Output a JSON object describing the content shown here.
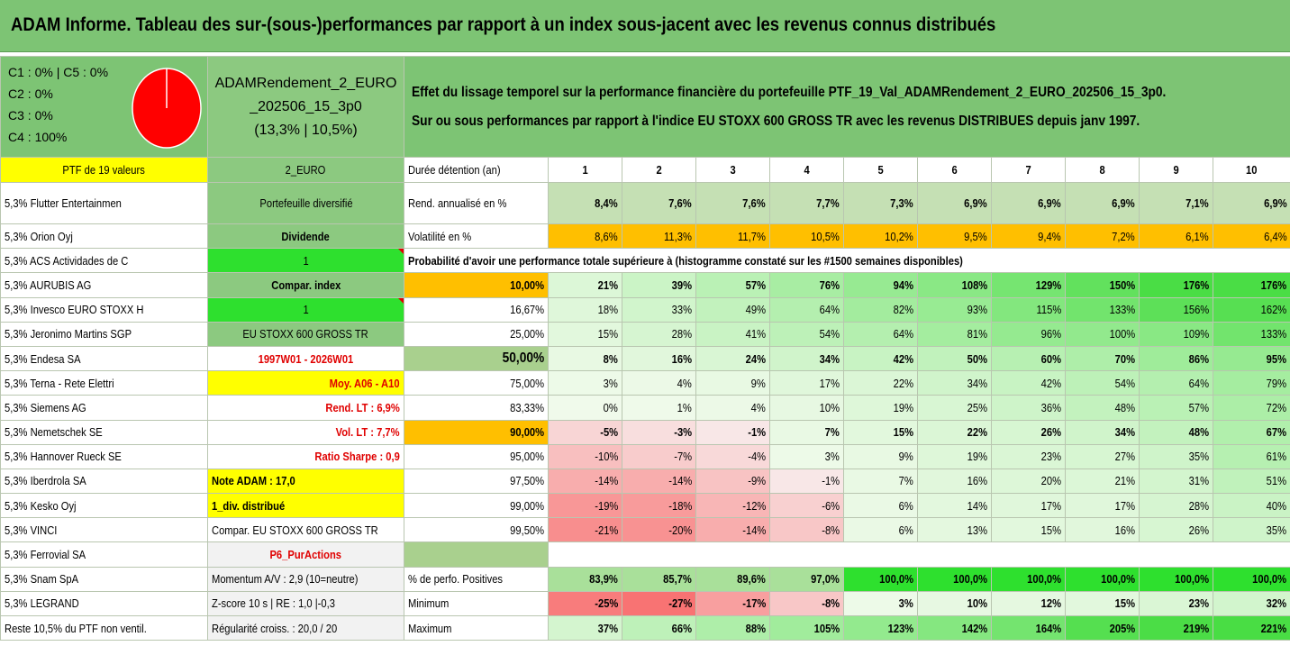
{
  "title": "ADAM Informe. Tableau des sur-(sous-)performances par rapport à un index sous-jacent avec les revenus connus distribués",
  "classes": [
    "C1 : 0% | C5 : 0%",
    "C2 : 0%",
    "C3 : 0%",
    "C4 : 100%"
  ],
  "pie": {
    "c4_fraction": 1.0,
    "color": "#ff0000"
  },
  "portfolio_name_line1": "ADAMRendement_2_EURO",
  "portfolio_name_line2": "_202506_15_3p0",
  "portfolio_name_line3": "(13,3% | 10,5%)",
  "description_line1": "Effet du lissage temporel sur la performance financière du portefeuille PTF_19_Val_ADAMRendement_2_EURO_202506_15_3p0.",
  "description_line2": "Sur ou sous performances par rapport à l'indice EU STOXX 600 GROSS TR avec les revenus DISTRIBUES depuis janv 1997.",
  "ptf_header": "PTF de 19 valeurs",
  "ptf_code": "2_EURO",
  "duration_label": "Durée détention (an)",
  "durations": [
    "1",
    "2",
    "3",
    "4",
    "5",
    "6",
    "7",
    "8",
    "9",
    "10"
  ],
  "holdings": [
    "5,3% Flutter Entertainmen",
    "5,3% Orion Oyj",
    "5,3% ACS Actividades de C",
    "5,3% AURUBIS AG",
    "5,3% Invesco EURO STOXX H",
    "5,3% Jeronimo Martins SGP",
    "5,3% Endesa SA",
    "5,3% Terna - Rete Elettri",
    "5,3% Siemens AG",
    "5,3% Nemetschek SE",
    "5,3% Hannover Rueck SE",
    "5,3% Iberdrola SA",
    "5,3% Kesko Oyj",
    "5,3% VINCI",
    "5,3% Ferrovial SA",
    "5,3% Snam SpA",
    "5,3% LEGRAND",
    "Reste 10,5% du PTF non ventil."
  ],
  "side_info": [
    "Portefeuille diversifié",
    "Dividende",
    "1",
    "Compar. index",
    "1",
    "EU STOXX 600 GROSS TR",
    "1997W01 - 2026W01",
    "Moy. A06 - A10",
    "Rend. LT : 6,9%",
    "Vol. LT : 7,7%",
    "Ratio Sharpe : 0,9",
    "Note ADAM : 17,0",
    "1_div. distribué",
    "Compar. EU STOXX 600 GROSS TR",
    "P6_PurActions",
    "Momentum A/V : 2,9 (10=neutre)",
    "Z-score 10 s | RE : 1,0 |-0,3",
    "Régularité croiss. : 20,0 / 20"
  ],
  "rend_label": "Rend. annualisé en %",
  "rend_values": [
    "8,4%",
    "7,6%",
    "7,6%",
    "7,7%",
    "7,3%",
    "6,9%",
    "6,9%",
    "6,9%",
    "7,1%",
    "6,9%"
  ],
  "vol_label": "Volatilité en %",
  "vol_values": [
    "8,6%",
    "11,3%",
    "11,7%",
    "10,5%",
    "10,2%",
    "9,5%",
    "9,4%",
    "7,2%",
    "6,1%",
    "6,4%"
  ],
  "prob_header": "Probabilité d'avoir une performance totale supérieure à (histogramme constaté sur les #1500 semaines disponibles)",
  "prob_rows": [
    {
      "p": "10,00%",
      "v": [
        "21%",
        "39%",
        "57%",
        "76%",
        "94%",
        "108%",
        "129%",
        "150%",
        "176%",
        "176%"
      ]
    },
    {
      "p": "16,67%",
      "v": [
        "18%",
        "33%",
        "49%",
        "64%",
        "82%",
        "93%",
        "115%",
        "133%",
        "156%",
        "162%"
      ]
    },
    {
      "p": "25,00%",
      "v": [
        "15%",
        "28%",
        "41%",
        "54%",
        "64%",
        "81%",
        "96%",
        "100%",
        "109%",
        "133%"
      ]
    },
    {
      "p": "50,00%",
      "v": [
        "8%",
        "16%",
        "24%",
        "34%",
        "42%",
        "50%",
        "60%",
        "70%",
        "86%",
        "95%"
      ]
    },
    {
      "p": "75,00%",
      "v": [
        "3%",
        "4%",
        "9%",
        "17%",
        "22%",
        "34%",
        "42%",
        "54%",
        "64%",
        "79%"
      ]
    },
    {
      "p": "83,33%",
      "v": [
        "0%",
        "1%",
        "4%",
        "10%",
        "19%",
        "25%",
        "36%",
        "48%",
        "57%",
        "72%"
      ]
    },
    {
      "p": "90,00%",
      "v": [
        "-5%",
        "-3%",
        "-1%",
        "7%",
        "15%",
        "22%",
        "26%",
        "34%",
        "48%",
        "67%"
      ]
    },
    {
      "p": "95,00%",
      "v": [
        "-10%",
        "-7%",
        "-4%",
        "3%",
        "9%",
        "19%",
        "23%",
        "27%",
        "35%",
        "61%"
      ]
    },
    {
      "p": "97,50%",
      "v": [
        "-14%",
        "-14%",
        "-9%",
        "-1%",
        "7%",
        "16%",
        "20%",
        "21%",
        "31%",
        "51%"
      ]
    },
    {
      "p": "99,00%",
      "v": [
        "-19%",
        "-18%",
        "-12%",
        "-6%",
        "6%",
        "14%",
        "17%",
        "17%",
        "28%",
        "40%"
      ]
    },
    {
      "p": "99,50%",
      "v": [
        "-21%",
        "-20%",
        "-14%",
        "-8%",
        "6%",
        "13%",
        "15%",
        "16%",
        "26%",
        "35%"
      ]
    }
  ],
  "pos_label": "% de perfo. Positives",
  "pos_values": [
    "83,9%",
    "85,7%",
    "89,6%",
    "97,0%",
    "100,0%",
    "100,0%",
    "100,0%",
    "100,0%",
    "100,0%",
    "100,0%"
  ],
  "min_label": "Minimum",
  "min_values": [
    "-25%",
    "-27%",
    "-17%",
    "-8%",
    "3%",
    "10%",
    "12%",
    "15%",
    "23%",
    "32%"
  ],
  "max_label": "Maximum",
  "max_values": [
    "37%",
    "66%",
    "88%",
    "105%",
    "123%",
    "142%",
    "164%",
    "205%",
    "219%",
    "221%"
  ]
}
